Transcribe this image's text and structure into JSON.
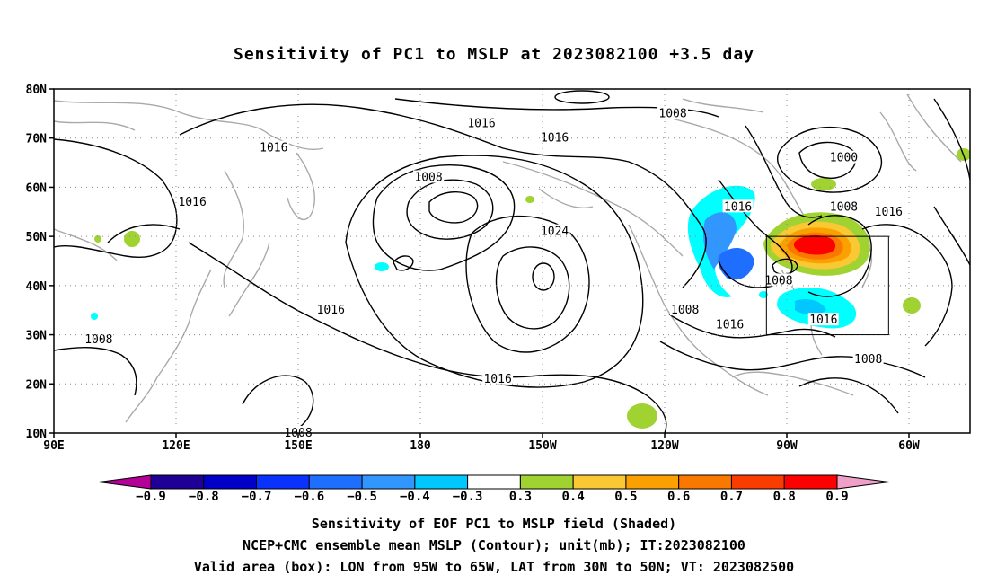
{
  "title": "Sensitivity of PC1 to MSLP at 2023082100 +3.5 day",
  "map": {
    "lat_ticks": [
      "80N",
      "70N",
      "60N",
      "50N",
      "40N",
      "30N",
      "20N",
      "10N"
    ],
    "lon_ticks": [
      "90E",
      "120E",
      "150E",
      "180",
      "150W",
      "120W",
      "90W",
      "60W"
    ],
    "extent": {
      "lon_min_e": 90,
      "lon_max_e": 315,
      "lat_min": 10,
      "lat_max": 80
    },
    "valid_box": {
      "lon_w": 95,
      "lon_e": 65,
      "lat_s": 30,
      "lat_n": 50
    },
    "contour_labels": [
      {
        "text": "1016",
        "lon_e": 195,
        "lat": 73
      },
      {
        "text": "1008",
        "lon_e": 242,
        "lat": 75
      },
      {
        "text": "1016",
        "lon_e": 144,
        "lat": 68
      },
      {
        "text": "1016",
        "lon_e": 213,
        "lat": 70
      },
      {
        "text": "1008",
        "lon_e": 182,
        "lat": 62
      },
      {
        "text": "1016",
        "lon_e": 124,
        "lat": 57
      },
      {
        "text": "1024",
        "lon_e": 213,
        "lat": 51
      },
      {
        "text": "1016",
        "lon_e": 258,
        "lat": 56
      },
      {
        "text": "1008",
        "lon_e": 284,
        "lat": 56
      },
      {
        "text": "1016",
        "lon_e": 295,
        "lat": 55
      },
      {
        "text": "1000",
        "lon_e": 284,
        "lat": 66
      },
      {
        "text": "1008",
        "lon_e": 268,
        "lat": 41
      },
      {
        "text": "1016",
        "lon_e": 158,
        "lat": 35
      },
      {
        "text": "1008",
        "lon_e": 245,
        "lat": 35
      },
      {
        "text": "1016",
        "lon_e": 256,
        "lat": 32
      },
      {
        "text": "1016",
        "lon_e": 279,
        "lat": 33
      },
      {
        "text": "1008",
        "lon_e": 101,
        "lat": 29
      },
      {
        "text": "1016",
        "lon_e": 199,
        "lat": 21
      },
      {
        "text": "1008",
        "lon_e": 290,
        "lat": 25
      },
      {
        "text": "1008",
        "lon_e": 150,
        "lat": 10
      }
    ]
  },
  "colorbar": {
    "labels": [
      "-0.9",
      "-0.8",
      "-0.7",
      "-0.6",
      "-0.5",
      "-0.4",
      "-0.3",
      "0.3",
      "0.4",
      "0.5",
      "0.6",
      "0.7",
      "0.8",
      "0.9"
    ],
    "colors": [
      "#1e0096",
      "#0000c8",
      "#0a32ff",
      "#1e6eff",
      "#3296ff",
      "#00c8ff",
      "#00ffff",
      "#ffffff",
      "#a0d232",
      "#fac832",
      "#faa000",
      "#fa7800",
      "#fa3c00",
      "#ff0000"
    ],
    "left_arrow_color": "#b40096",
    "right_arrow_color": "#f0a0c8"
  },
  "captions": {
    "line1": "Sensitivity of EOF PC1 to MSLP field (Shaded)",
    "line2": "NCEP+CMC ensemble mean MSLP (Contour); unit(mb); IT:2023082100",
    "line3": "Valid area (box): LON from 95W to 65W, LAT from 30N to 50N; VT: 2023082500"
  }
}
